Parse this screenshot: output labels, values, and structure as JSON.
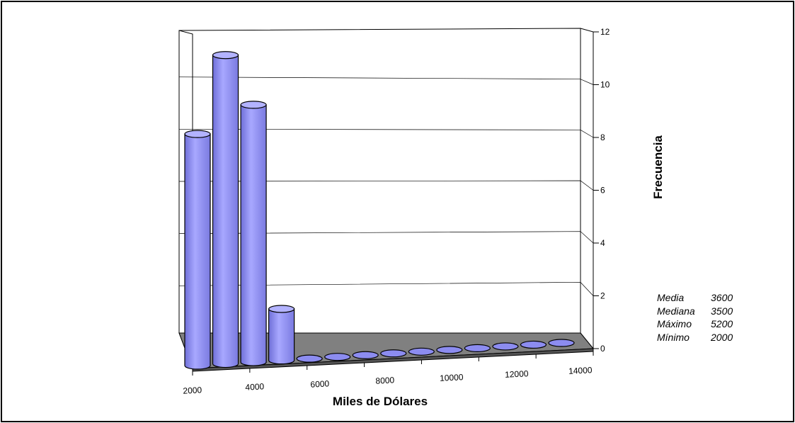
{
  "chart_data": {
    "type": "bar",
    "style": "3d-cylinder",
    "categories": [
      "2000",
      "3000",
      "4000",
      "5000",
      "6000",
      "7000",
      "8000",
      "9000",
      "10000",
      "11000",
      "12000",
      "13000",
      "14000",
      "15000"
    ],
    "values": [
      9,
      12,
      10,
      2,
      0,
      0,
      0,
      0,
      0,
      0,
      0,
      0,
      0,
      0
    ],
    "x_tick_labels": [
      "2000",
      "4000",
      "6000",
      "8000",
      "10000",
      "12000",
      "14000"
    ],
    "y_tick_labels": [
      "0",
      "2",
      "4",
      "6",
      "8",
      "10",
      "12"
    ],
    "xlabel": "Miles de Dólares",
    "ylabel": "Frecuencia",
    "ylim": [
      0,
      12
    ],
    "grid": true,
    "bar_color": "#9999ff",
    "floor_color": "#808080"
  },
  "stats": [
    {
      "label": "Media",
      "value": "3600"
    },
    {
      "label": "Mediana",
      "value": "3500"
    },
    {
      "label": "Máximo",
      "value": "5200"
    },
    {
      "label": "Mínimo",
      "value": "2000"
    }
  ]
}
